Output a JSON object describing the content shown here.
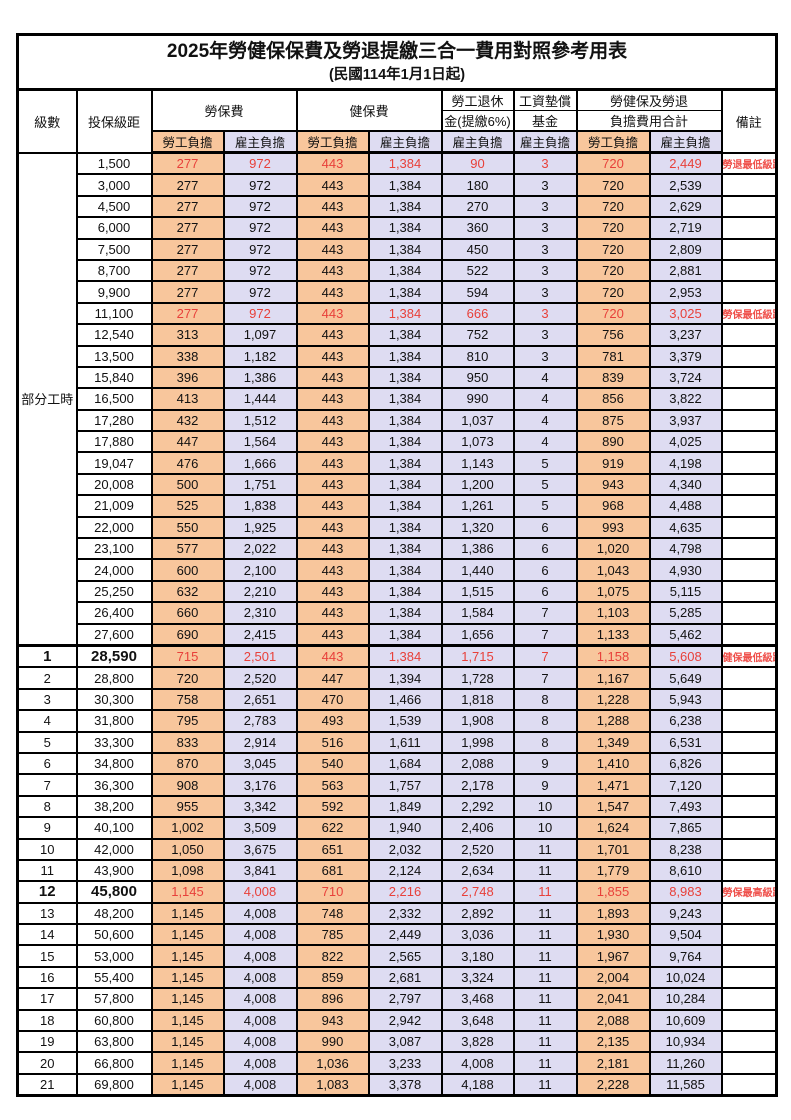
{
  "title": "2025年勞健保保費及勞退提繳三合一費用對照參考用表",
  "subtitle": "(民國114年1月1日起)",
  "colors": {
    "worker_bg": "#F8C69C",
    "employer_bg": "#DEDCF2",
    "highlight_value_red": "#E8403A",
    "remark_red": "#EF4F4A",
    "grid_black": "#000000"
  },
  "header": {
    "level": "級數",
    "bracket": "投保級距",
    "labor_fee": "勞保費",
    "health_fee": "健保費",
    "pension_line1": "勞工退休",
    "pension_line2": "金(提繳6%)",
    "wage_fund_line1": "工資墊償",
    "wage_fund_line2": "基金",
    "total_line1": "勞健保及勞退",
    "total_line2": "負擔費用合計",
    "remark": "備註",
    "worker": "勞工負擔",
    "employer": "雇主負擔"
  },
  "part_time_label": "部分工時",
  "part_time_rowspan": 23,
  "section_start_index": 23,
  "column_bg": [
    "worker-bg",
    "employer-bg",
    "worker-bg",
    "employer-bg",
    "employer-bg",
    "employer-bg",
    "worker-bg",
    "employer-bg"
  ],
  "rows": [
    {
      "lv": "",
      "sal": "1,500",
      "v": [
        "277",
        "972",
        "443",
        "1,384",
        "90",
        "3",
        "720",
        "2,449"
      ],
      "rm": "勞退最低級距",
      "hl": true,
      "big": false
    },
    {
      "lv": "",
      "sal": "3,000",
      "v": [
        "277",
        "972",
        "443",
        "1,384",
        "180",
        "3",
        "720",
        "2,539"
      ],
      "rm": "",
      "hl": false,
      "big": false
    },
    {
      "lv": "",
      "sal": "4,500",
      "v": [
        "277",
        "972",
        "443",
        "1,384",
        "270",
        "3",
        "720",
        "2,629"
      ],
      "rm": "",
      "hl": false,
      "big": false
    },
    {
      "lv": "",
      "sal": "6,000",
      "v": [
        "277",
        "972",
        "443",
        "1,384",
        "360",
        "3",
        "720",
        "2,719"
      ],
      "rm": "",
      "hl": false,
      "big": false
    },
    {
      "lv": "",
      "sal": "7,500",
      "v": [
        "277",
        "972",
        "443",
        "1,384",
        "450",
        "3",
        "720",
        "2,809"
      ],
      "rm": "",
      "hl": false,
      "big": false
    },
    {
      "lv": "",
      "sal": "8,700",
      "v": [
        "277",
        "972",
        "443",
        "1,384",
        "522",
        "3",
        "720",
        "2,881"
      ],
      "rm": "",
      "hl": false,
      "big": false
    },
    {
      "lv": "",
      "sal": "9,900",
      "v": [
        "277",
        "972",
        "443",
        "1,384",
        "594",
        "3",
        "720",
        "2,953"
      ],
      "rm": "",
      "hl": false,
      "big": false
    },
    {
      "lv": "",
      "sal": "11,100",
      "v": [
        "277",
        "972",
        "443",
        "1,384",
        "666",
        "3",
        "720",
        "3,025"
      ],
      "rm": "勞保最低級距",
      "hl": true,
      "big": false
    },
    {
      "lv": "",
      "sal": "12,540",
      "v": [
        "313",
        "1,097",
        "443",
        "1,384",
        "752",
        "3",
        "756",
        "3,237"
      ],
      "rm": "",
      "hl": false,
      "big": false
    },
    {
      "lv": "",
      "sal": "13,500",
      "v": [
        "338",
        "1,182",
        "443",
        "1,384",
        "810",
        "3",
        "781",
        "3,379"
      ],
      "rm": "",
      "hl": false,
      "big": false
    },
    {
      "lv": "",
      "sal": "15,840",
      "v": [
        "396",
        "1,386",
        "443",
        "1,384",
        "950",
        "4",
        "839",
        "3,724"
      ],
      "rm": "",
      "hl": false,
      "big": false
    },
    {
      "lv": "",
      "sal": "16,500",
      "v": [
        "413",
        "1,444",
        "443",
        "1,384",
        "990",
        "4",
        "856",
        "3,822"
      ],
      "rm": "",
      "hl": false,
      "big": false
    },
    {
      "lv": "",
      "sal": "17,280",
      "v": [
        "432",
        "1,512",
        "443",
        "1,384",
        "1,037",
        "4",
        "875",
        "3,937"
      ],
      "rm": "",
      "hl": false,
      "big": false
    },
    {
      "lv": "",
      "sal": "17,880",
      "v": [
        "447",
        "1,564",
        "443",
        "1,384",
        "1,073",
        "4",
        "890",
        "4,025"
      ],
      "rm": "",
      "hl": false,
      "big": false
    },
    {
      "lv": "",
      "sal": "19,047",
      "v": [
        "476",
        "1,666",
        "443",
        "1,384",
        "1,143",
        "5",
        "919",
        "4,198"
      ],
      "rm": "",
      "hl": false,
      "big": false
    },
    {
      "lv": "",
      "sal": "20,008",
      "v": [
        "500",
        "1,751",
        "443",
        "1,384",
        "1,200",
        "5",
        "943",
        "4,340"
      ],
      "rm": "",
      "hl": false,
      "big": false
    },
    {
      "lv": "",
      "sal": "21,009",
      "v": [
        "525",
        "1,838",
        "443",
        "1,384",
        "1,261",
        "5",
        "968",
        "4,488"
      ],
      "rm": "",
      "hl": false,
      "big": false
    },
    {
      "lv": "",
      "sal": "22,000",
      "v": [
        "550",
        "1,925",
        "443",
        "1,384",
        "1,320",
        "6",
        "993",
        "4,635"
      ],
      "rm": "",
      "hl": false,
      "big": false
    },
    {
      "lv": "",
      "sal": "23,100",
      "v": [
        "577",
        "2,022",
        "443",
        "1,384",
        "1,386",
        "6",
        "1,020",
        "4,798"
      ],
      "rm": "",
      "hl": false,
      "big": false
    },
    {
      "lv": "",
      "sal": "24,000",
      "v": [
        "600",
        "2,100",
        "443",
        "1,384",
        "1,440",
        "6",
        "1,043",
        "4,930"
      ],
      "rm": "",
      "hl": false,
      "big": false
    },
    {
      "lv": "",
      "sal": "25,250",
      "v": [
        "632",
        "2,210",
        "443",
        "1,384",
        "1,515",
        "6",
        "1,075",
        "5,115"
      ],
      "rm": "",
      "hl": false,
      "big": false
    },
    {
      "lv": "",
      "sal": "26,400",
      "v": [
        "660",
        "2,310",
        "443",
        "1,384",
        "1,584",
        "7",
        "1,103",
        "5,285"
      ],
      "rm": "",
      "hl": false,
      "big": false
    },
    {
      "lv": "",
      "sal": "27,600",
      "v": [
        "690",
        "2,415",
        "443",
        "1,384",
        "1,656",
        "7",
        "1,133",
        "5,462"
      ],
      "rm": "",
      "hl": false,
      "big": false
    },
    {
      "lv": "1",
      "sal": "28,590",
      "v": [
        "715",
        "2,501",
        "443",
        "1,384",
        "1,715",
        "7",
        "1,158",
        "5,608"
      ],
      "rm": "健保最低級距",
      "hl": true,
      "big": true
    },
    {
      "lv": "2",
      "sal": "28,800",
      "v": [
        "720",
        "2,520",
        "447",
        "1,394",
        "1,728",
        "7",
        "1,167",
        "5,649"
      ],
      "rm": "",
      "hl": false,
      "big": false
    },
    {
      "lv": "3",
      "sal": "30,300",
      "v": [
        "758",
        "2,651",
        "470",
        "1,466",
        "1,818",
        "8",
        "1,228",
        "5,943"
      ],
      "rm": "",
      "hl": false,
      "big": false
    },
    {
      "lv": "4",
      "sal": "31,800",
      "v": [
        "795",
        "2,783",
        "493",
        "1,539",
        "1,908",
        "8",
        "1,288",
        "6,238"
      ],
      "rm": "",
      "hl": false,
      "big": false
    },
    {
      "lv": "5",
      "sal": "33,300",
      "v": [
        "833",
        "2,914",
        "516",
        "1,611",
        "1,998",
        "8",
        "1,349",
        "6,531"
      ],
      "rm": "",
      "hl": false,
      "big": false
    },
    {
      "lv": "6",
      "sal": "34,800",
      "v": [
        "870",
        "3,045",
        "540",
        "1,684",
        "2,088",
        "9",
        "1,410",
        "6,826"
      ],
      "rm": "",
      "hl": false,
      "big": false
    },
    {
      "lv": "7",
      "sal": "36,300",
      "v": [
        "908",
        "3,176",
        "563",
        "1,757",
        "2,178",
        "9",
        "1,471",
        "7,120"
      ],
      "rm": "",
      "hl": false,
      "big": false
    },
    {
      "lv": "8",
      "sal": "38,200",
      "v": [
        "955",
        "3,342",
        "592",
        "1,849",
        "2,292",
        "10",
        "1,547",
        "7,493"
      ],
      "rm": "",
      "hl": false,
      "big": false
    },
    {
      "lv": "9",
      "sal": "40,100",
      "v": [
        "1,002",
        "3,509",
        "622",
        "1,940",
        "2,406",
        "10",
        "1,624",
        "7,865"
      ],
      "rm": "",
      "hl": false,
      "big": false
    },
    {
      "lv": "10",
      "sal": "42,000",
      "v": [
        "1,050",
        "3,675",
        "651",
        "2,032",
        "2,520",
        "11",
        "1,701",
        "8,238"
      ],
      "rm": "",
      "hl": false,
      "big": false
    },
    {
      "lv": "11",
      "sal": "43,900",
      "v": [
        "1,098",
        "3,841",
        "681",
        "2,124",
        "2,634",
        "11",
        "1,779",
        "8,610"
      ],
      "rm": "",
      "hl": false,
      "big": false
    },
    {
      "lv": "12",
      "sal": "45,800",
      "v": [
        "1,145",
        "4,008",
        "710",
        "2,216",
        "2,748",
        "11",
        "1,855",
        "8,983"
      ],
      "rm": "勞保最高級距",
      "hl": true,
      "big": true
    },
    {
      "lv": "13",
      "sal": "48,200",
      "v": [
        "1,145",
        "4,008",
        "748",
        "2,332",
        "2,892",
        "11",
        "1,893",
        "9,243"
      ],
      "rm": "",
      "hl": false,
      "big": false
    },
    {
      "lv": "14",
      "sal": "50,600",
      "v": [
        "1,145",
        "4,008",
        "785",
        "2,449",
        "3,036",
        "11",
        "1,930",
        "9,504"
      ],
      "rm": "",
      "hl": false,
      "big": false
    },
    {
      "lv": "15",
      "sal": "53,000",
      "v": [
        "1,145",
        "4,008",
        "822",
        "2,565",
        "3,180",
        "11",
        "1,967",
        "9,764"
      ],
      "rm": "",
      "hl": false,
      "big": false
    },
    {
      "lv": "16",
      "sal": "55,400",
      "v": [
        "1,145",
        "4,008",
        "859",
        "2,681",
        "3,324",
        "11",
        "2,004",
        "10,024"
      ],
      "rm": "",
      "hl": false,
      "big": false
    },
    {
      "lv": "17",
      "sal": "57,800",
      "v": [
        "1,145",
        "4,008",
        "896",
        "2,797",
        "3,468",
        "11",
        "2,041",
        "10,284"
      ],
      "rm": "",
      "hl": false,
      "big": false
    },
    {
      "lv": "18",
      "sal": "60,800",
      "v": [
        "1,145",
        "4,008",
        "943",
        "2,942",
        "3,648",
        "11",
        "2,088",
        "10,609"
      ],
      "rm": "",
      "hl": false,
      "big": false
    },
    {
      "lv": "19",
      "sal": "63,800",
      "v": [
        "1,145",
        "4,008",
        "990",
        "3,087",
        "3,828",
        "11",
        "2,135",
        "10,934"
      ],
      "rm": "",
      "hl": false,
      "big": false
    },
    {
      "lv": "20",
      "sal": "66,800",
      "v": [
        "1,145",
        "4,008",
        "1,036",
        "3,233",
        "4,008",
        "11",
        "2,181",
        "11,260"
      ],
      "rm": "",
      "hl": false,
      "big": false
    },
    {
      "lv": "21",
      "sal": "69,800",
      "v": [
        "1,145",
        "4,008",
        "1,083",
        "3,378",
        "4,188",
        "11",
        "2,228",
        "11,585"
      ],
      "rm": "",
      "hl": false,
      "big": false
    }
  ]
}
